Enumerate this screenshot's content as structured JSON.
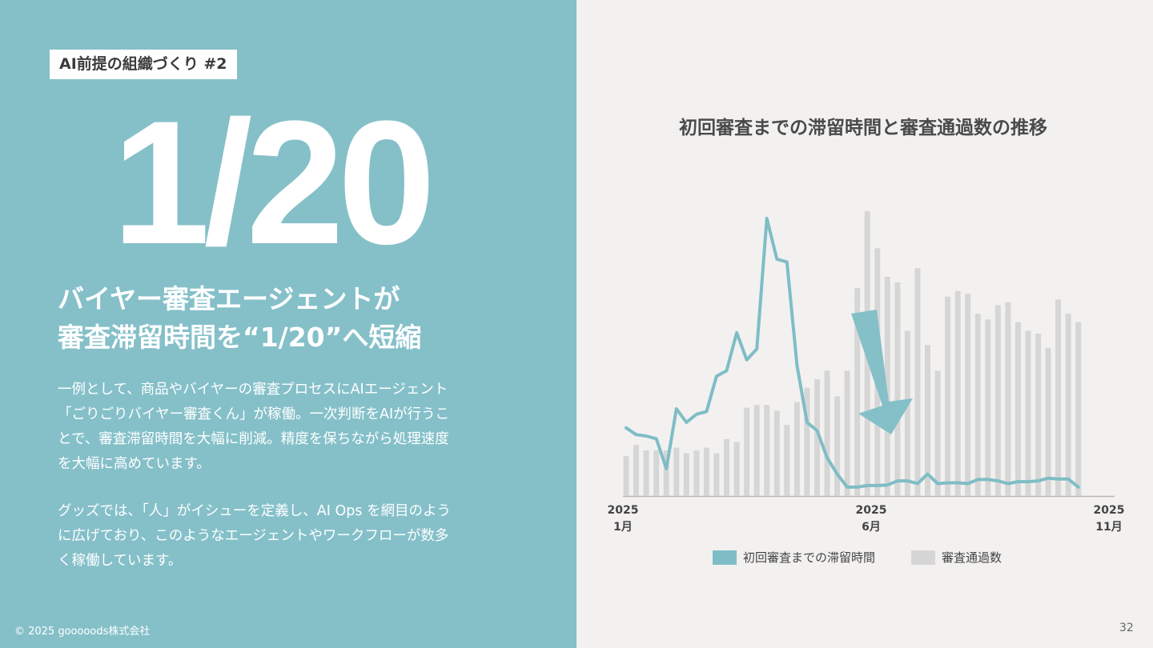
{
  "tag": "AI前提の組織づくり #2",
  "big_number": "1/20",
  "headline": [
    "バイヤー審査エージェントが",
    "審査滞留時間を“1/20”へ短縮"
  ],
  "paragraph1": [
    "一例として、商品やバイヤーの審査プロセスにAIエージェント",
    "「ごりごりバイヤー審査くん」が稼働。一次判断をAIが行うこ",
    "とで、審査滞留時間を大幅に削減。精度を保ちながら処理速度",
    "を大幅に高めています。"
  ],
  "paragraph2": [
    "グッズでは、「人」がイシューを定義し、AI Ops を網目のよう",
    "に広げており、このようなエージェントやワークフローが数多",
    "く稼働しています。"
  ],
  "copyright": "© 2025 gooooods株式会社",
  "page_number": "32",
  "colors": {
    "left_bg": "#85c0c9",
    "line": "#7fbdc6",
    "bar": "#d6d6d6",
    "arrow": "#85c0c9"
  },
  "chart_data": {
    "type": "bar+line",
    "title": "初回審査までの滞留時間と審査通過数の推移",
    "x_ticks": [
      {
        "year": "2025",
        "month": "1月"
      },
      {
        "year": "2025",
        "month": "6月"
      },
      {
        "year": "2025",
        "month": "11月"
      }
    ],
    "series": [
      {
        "name": "審査通過数",
        "type": "bar",
        "values": [
          14,
          18,
          16,
          16,
          16,
          17,
          15,
          16,
          17,
          15,
          20,
          19,
          31,
          32,
          32,
          30,
          25,
          33,
          38,
          41,
          44,
          35,
          44,
          73,
          100,
          87,
          77,
          75,
          58,
          80,
          53,
          44,
          70,
          72,
          71,
          64,
          62,
          67,
          68,
          61,
          58,
          57,
          52,
          69,
          64,
          61
        ]
      },
      {
        "name": "初回審査までの滞留時間",
        "type": "line",
        "values": [
          23,
          20.5,
          20,
          19,
          8,
          30,
          25,
          28,
          29,
          42,
          44,
          58,
          48,
          52,
          100,
          85,
          84,
          46,
          25,
          22,
          12,
          6,
          1.2,
          1.2,
          1.8,
          1.8,
          2,
          3.5,
          3.5,
          2.5,
          6,
          2.5,
          2.8,
          2.8,
          2.5,
          4,
          4,
          3.5,
          2.5,
          3.2,
          3.2,
          3.5,
          4.5,
          4.2,
          4.2,
          1.2
        ]
      }
    ],
    "annotation": "downward-arrow"
  }
}
